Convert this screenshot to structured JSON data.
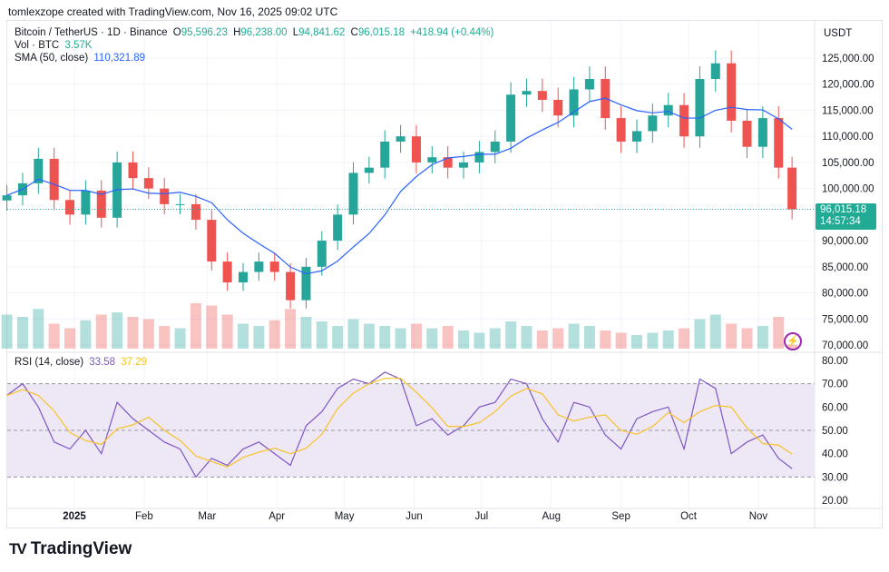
{
  "header": {
    "credit": "tomlexzope created with TradingView.com, Nov 16, 2025 09:02 UTC"
  },
  "legend": {
    "symbol": "Bitcoin / TetherUS · 1D · Binance",
    "open_label": "O",
    "open": "95,596.23",
    "high_label": "H",
    "high": "96,238.00",
    "low_label": "L",
    "low": "94,841.62",
    "close_label": "C",
    "close": "96,015.18",
    "change": "+418.94 (+0.44%)",
    "vol_label": "Vol · BTC",
    "vol": "3.57K",
    "sma_label": "SMA (50, close)",
    "sma": "110,321.89",
    "rsi_label": "RSI (14, close)",
    "rsi": "33.58",
    "rsi_ma": "37.29"
  },
  "price_axis": {
    "currency": "USDT",
    "last_price": "96,015.18",
    "countdown": "14:57:34"
  },
  "brand": {
    "logo_text": "TradingView"
  },
  "colors": {
    "up": "#26a69a",
    "down": "#ef5350",
    "sma": "#2962ff",
    "rsi": "#7e57c2",
    "rsi_ma": "#f7c325",
    "rsi_band": "#ede7f6"
  },
  "chart_data": {
    "type": "candlestick",
    "note_resolution": "weekly approximation of daily chart",
    "ylim": [
      70000,
      127000
    ],
    "y_ticks": [
      "125,000.00",
      "120,000.00",
      "115,000.00",
      "110,000.00",
      "105,000.00",
      "100,000.00",
      "90,000.00",
      "85,000.00",
      "80,000.00",
      "75,000.00",
      "70,000.00"
    ],
    "y_tick_values": [
      125000,
      120000,
      115000,
      110000,
      105000,
      100000,
      90000,
      85000,
      80000,
      75000,
      70000
    ],
    "x_ticks": [
      "2025",
      "Feb",
      "Mar",
      "Apr",
      "May",
      "Jun",
      "Jul",
      "Aug",
      "Sep",
      "Oct",
      "Nov"
    ],
    "x_tick_dates": [
      "2025-01-01",
      "2025-02-01",
      "2025-03-01",
      "2025-04-01",
      "2025-05-01",
      "2025-06-01",
      "2025-07-01",
      "2025-08-01",
      "2025-09-01",
      "2025-10-01",
      "2025-11-01"
    ],
    "dates": [
      "2024-12-02",
      "2024-12-09",
      "2024-12-16",
      "2024-12-23",
      "2024-12-30",
      "2025-01-06",
      "2025-01-13",
      "2025-01-20",
      "2025-01-27",
      "2025-02-03",
      "2025-02-10",
      "2025-02-17",
      "2025-02-24",
      "2025-03-03",
      "2025-03-10",
      "2025-03-17",
      "2025-03-24",
      "2025-03-31",
      "2025-04-07",
      "2025-04-14",
      "2025-04-21",
      "2025-04-28",
      "2025-05-05",
      "2025-05-12",
      "2025-05-19",
      "2025-05-26",
      "2025-06-02",
      "2025-06-09",
      "2025-06-16",
      "2025-06-23",
      "2025-06-30",
      "2025-07-07",
      "2025-07-14",
      "2025-07-21",
      "2025-07-28",
      "2025-08-04",
      "2025-08-11",
      "2025-08-18",
      "2025-08-25",
      "2025-09-01",
      "2025-09-08",
      "2025-09-15",
      "2025-09-22",
      "2025-09-29",
      "2025-10-06",
      "2025-10-13",
      "2025-10-20",
      "2025-10-27",
      "2025-11-03",
      "2025-11-10",
      "2025-11-16"
    ],
    "close": [
      98700,
      101000,
      105700,
      97800,
      95000,
      99600,
      94400,
      105000,
      102000,
      100000,
      97000,
      97000,
      94000,
      86000,
      82000,
      84000,
      86000,
      84000,
      78600,
      85000,
      90000,
      95000,
      103000,
      104000,
      109000,
      110000,
      105000,
      106000,
      104000,
      105000,
      107000,
      109000,
      118000,
      118700,
      117000,
      114000,
      119000,
      121000,
      113500,
      109000,
      111000,
      114000,
      116000,
      110000,
      121000,
      124000,
      113000,
      108000,
      113500,
      104000,
      96015.18
    ],
    "volume_k_btc": [
      30,
      28,
      35,
      22,
      18,
      25,
      30,
      32,
      28,
      26,
      20,
      18,
      40,
      38,
      30,
      22,
      20,
      25,
      35,
      28,
      24,
      20,
      26,
      22,
      20,
      18,
      22,
      18,
      20,
      16,
      14,
      18,
      24,
      20,
      16,
      18,
      22,
      20,
      16,
      14,
      12,
      14,
      16,
      18,
      26,
      30,
      22,
      18,
      20,
      28,
      3.57
    ],
    "sma_period": 50,
    "rsi": {
      "ylim": [
        20,
        80
      ],
      "y_ticks": [
        "80.00",
        "70.00",
        "60.00",
        "50.00",
        "40.00",
        "30.00",
        "20.00"
      ],
      "y_tick_values": [
        80,
        70,
        60,
        50,
        40,
        30,
        20
      ],
      "bands": [
        30,
        70
      ],
      "values": [
        65,
        70,
        60,
        45,
        42,
        50,
        40,
        62,
        55,
        50,
        45,
        42,
        30,
        38,
        35,
        42,
        45,
        40,
        35,
        52,
        58,
        68,
        72,
        70,
        75,
        72,
        52,
        55,
        48,
        52,
        60,
        62,
        72,
        70,
        55,
        45,
        62,
        60,
        48,
        42,
        55,
        58,
        60,
        42,
        72,
        68,
        40,
        45,
        48,
        38,
        33.58
      ]
    }
  }
}
